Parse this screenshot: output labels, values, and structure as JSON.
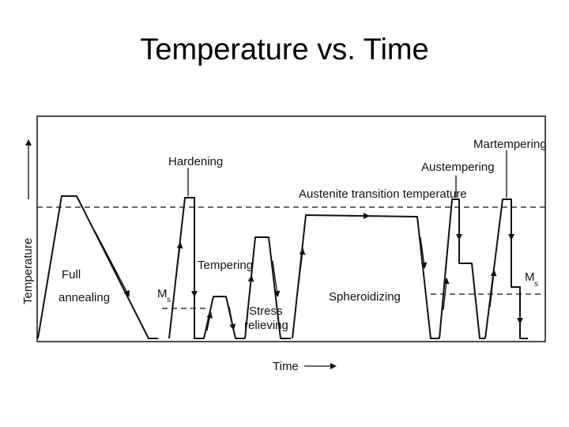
{
  "title": "Temperature vs. Time",
  "axes": {
    "y_label": "Temperature",
    "x_label": "Time"
  },
  "labels": {
    "full_annealing_1": "Full",
    "full_annealing_2": "annealing",
    "hardening": "Hardening",
    "ms_left": "M",
    "ms_left_sub": "s",
    "tempering": "Tempering",
    "stress_1": "Stress",
    "stress_2": "relieving",
    "austenite": "Austenite transition temperature",
    "spheroidizing": "Spheroidizing",
    "austempering": "Austempering",
    "martempering": "Martempering",
    "ms_right": "M",
    "ms_right_sub": "s"
  }
}
